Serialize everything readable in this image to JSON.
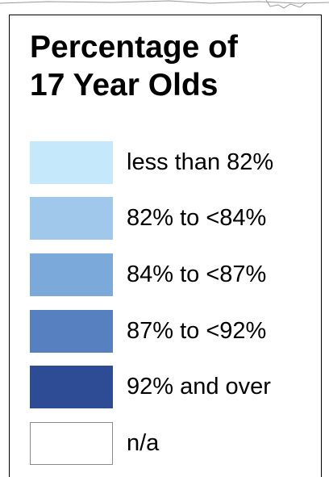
{
  "legend": {
    "title_line1": "Percentage of",
    "title_line2": "17 Year Olds",
    "items": [
      {
        "label": "less than 82%",
        "color": "#c5e9fb"
      },
      {
        "label": "82% to <84%",
        "color": "#9fc8ea"
      },
      {
        "label": "84% to <87%",
        "color": "#7aa9da"
      },
      {
        "label": "87% to <92%",
        "color": "#5680bf"
      },
      {
        "label": "92% and over",
        "color": "#2e4c96"
      },
      {
        "label": "n/a",
        "color": "#ffffff"
      }
    ]
  }
}
